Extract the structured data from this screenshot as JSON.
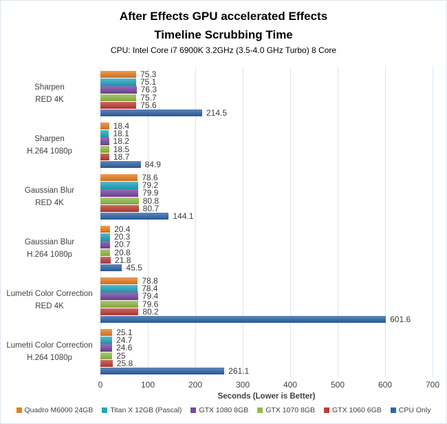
{
  "chart_data": {
    "type": "bar",
    "orientation": "horizontal",
    "title_lines": [
      "After Effects GPU accelerated Effects",
      "Timeline Scrubbing Time"
    ],
    "subtitle": "CPU: Intel Core i7 6900K 3.2GHz (3.5-4.0 GHz Turbo) 8 Core",
    "xlabel": "Seconds (Lower is Better)",
    "xlim": [
      0,
      700
    ],
    "x_ticks": [
      0,
      100,
      200,
      300,
      400,
      500,
      600,
      700
    ],
    "grid": "vertical-only",
    "legend_position": "bottom",
    "gridline_color": "#d9e5ec",
    "categories": [
      [
        "Sharpen",
        "RED 4K"
      ],
      [
        "Sharpen",
        "H.264 1080p"
      ],
      [
        "Gaussian Blur",
        "RED 4K"
      ],
      [
        "Gaussian Blur",
        "H.264 1080p"
      ],
      [
        "Lumetri Color Correction",
        "RED 4K"
      ],
      [
        "Lumetri Color Correction",
        "H.264 1080p"
      ]
    ],
    "series": [
      {
        "name": "Quadro M6000 24GB",
        "color": "#E87E23",
        "values": [
          75.3,
          18.4,
          78.6,
          20.4,
          78.8,
          25.1
        ]
      },
      {
        "name": "Titan X 12GB (Pascal)",
        "color": "#22A5C0",
        "values": [
          75.1,
          18.1,
          79.2,
          20.3,
          78.4,
          24.7
        ]
      },
      {
        "name": "GTX 1080 8GB",
        "color": "#7547A0",
        "values": [
          76.3,
          18.2,
          79.9,
          20.7,
          79.4,
          24.6
        ]
      },
      {
        "name": "GTX 1070 8GB",
        "color": "#93BA47",
        "values": [
          75.7,
          18.5,
          80.8,
          20.8,
          79.6,
          25
        ]
      },
      {
        "name": "GTX 1060 6GB",
        "color": "#BE3D36",
        "values": [
          75.6,
          18.7,
          80.7,
          21.8,
          80.2,
          25.8
        ]
      },
      {
        "name": "CPU Only",
        "color": "#2F64A9",
        "values": [
          214.5,
          84.9,
          144.1,
          45.5,
          601.6,
          261.1
        ]
      }
    ]
  }
}
